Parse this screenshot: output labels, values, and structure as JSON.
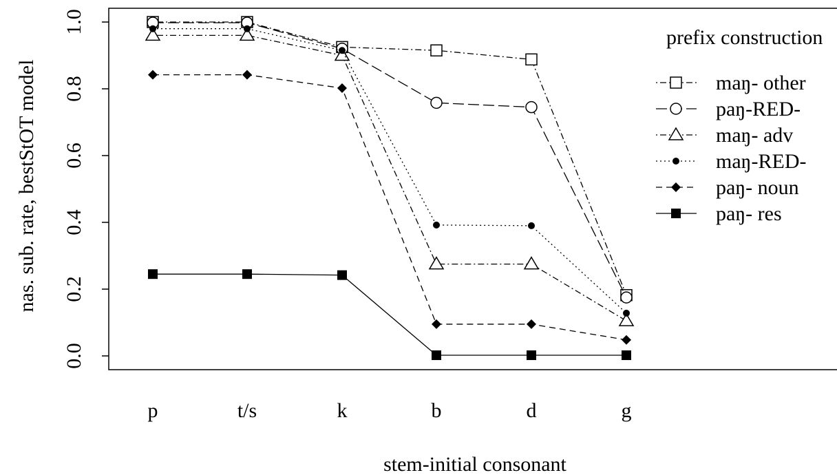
{
  "chart_data": {
    "type": "line",
    "categories": [
      "p",
      "t/s",
      "k",
      "b",
      "d",
      "g"
    ],
    "xlabel": "stem-initial consonant",
    "ylabel": "nas. sub. rate, bestStOT model",
    "ylim": [
      0.0,
      1.0
    ],
    "yticks": [
      "0.0",
      "0.2",
      "0.4",
      "0.6",
      "0.8",
      "1.0"
    ],
    "grid": false,
    "legend_title": "prefix construction",
    "legend_position": "top-right",
    "series": [
      {
        "name": "maŋ- other",
        "marker": "open-square",
        "dash": "dotdash",
        "values": [
          1.0,
          1.0,
          0.925,
          0.915,
          0.888,
          0.182
        ]
      },
      {
        "name": "paŋ-RED-",
        "marker": "open-circle",
        "dash": "longdash",
        "values": [
          0.998,
          0.998,
          0.92,
          0.758,
          0.745,
          0.175
        ]
      },
      {
        "name": "maŋ- adv",
        "marker": "open-triangle",
        "dash": "dotdash",
        "values": [
          0.96,
          0.96,
          0.9,
          0.275,
          0.275,
          0.105
        ]
      },
      {
        "name": "maŋ-RED-",
        "marker": "filled-circle",
        "dash": "dotted",
        "values": [
          0.98,
          0.98,
          0.915,
          0.392,
          0.39,
          0.128
        ]
      },
      {
        "name": "paŋ- noun",
        "marker": "filled-diamond",
        "dash": "dashed",
        "values": [
          0.842,
          0.842,
          0.802,
          0.095,
          0.095,
          0.048
        ]
      },
      {
        "name": "paŋ- res",
        "marker": "filled-square",
        "dash": "solid",
        "values": [
          0.245,
          0.245,
          0.242,
          0.002,
          0.002,
          0.002
        ]
      }
    ]
  }
}
